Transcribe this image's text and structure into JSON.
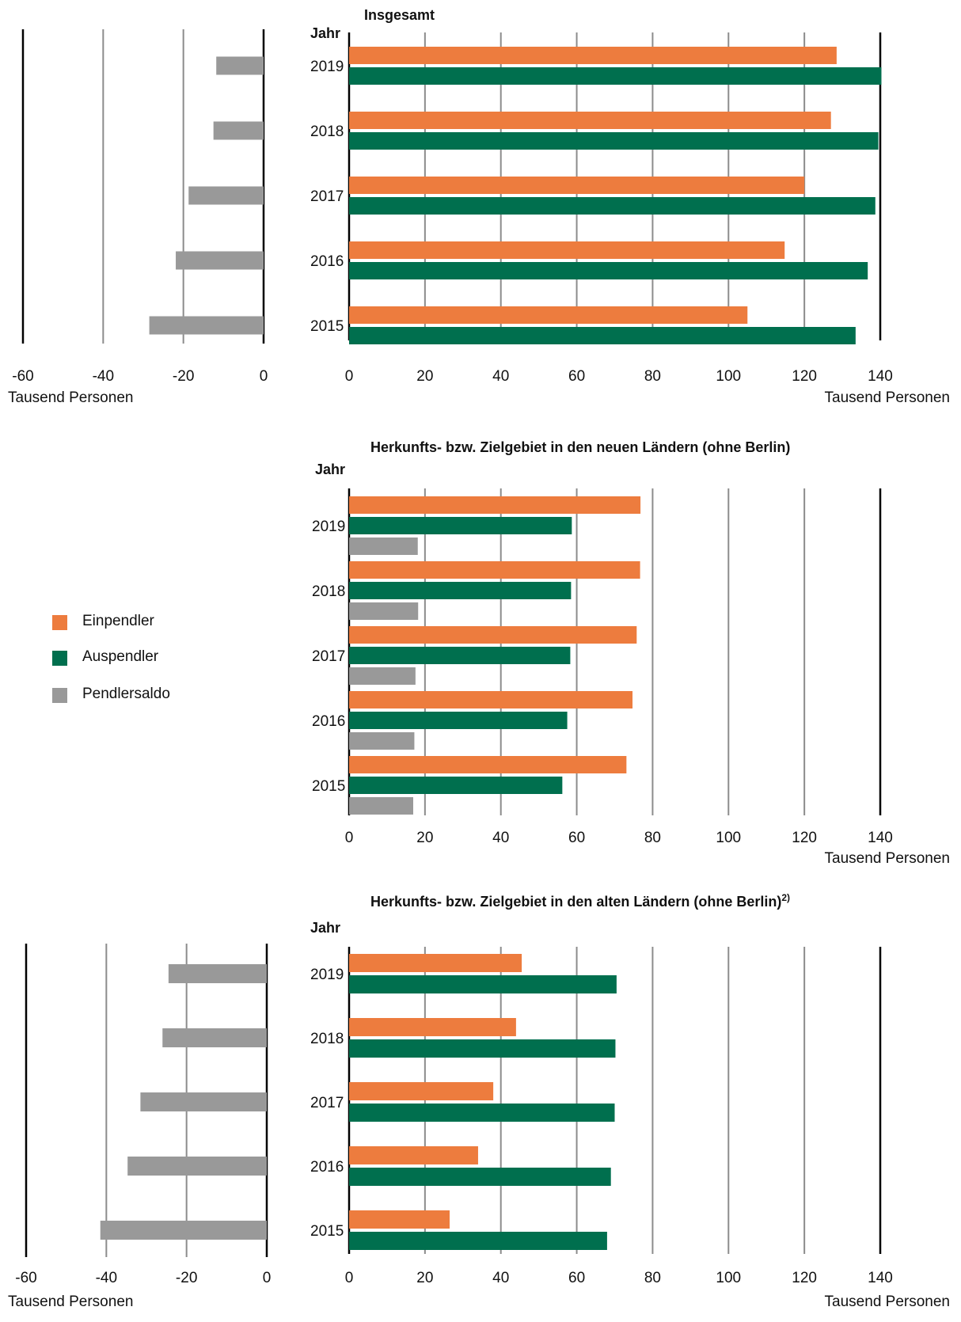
{
  "colors": {
    "einpendler": "#ED7C3E",
    "auspendler": "#006F4E",
    "pendlersaldo": "#999999",
    "axis": "#000000",
    "grid": "#8c8c8c"
  },
  "legend": {
    "items": [
      {
        "key": "einpendler",
        "label": "Einpendler"
      },
      {
        "key": "auspendler",
        "label": "Auspendler"
      },
      {
        "key": "pendlersaldo",
        "label": "Pendlersaldo"
      }
    ]
  },
  "chart_data": [
    {
      "type": "bar",
      "orientation": "horizontal",
      "title": "Insgesamt",
      "ylabel": "Jahr",
      "xlabel": "Tausend Personen",
      "categories": [
        "2019",
        "2018",
        "2017",
        "2016",
        "2015"
      ],
      "xlim": [
        0,
        140
      ],
      "xticks": [
        "0",
        "20",
        "40",
        "60",
        "80",
        "100",
        "120",
        "140"
      ],
      "series": [
        {
          "name": "Einpendler",
          "color": "#ED7C3E",
          "values": [
            128.5,
            127.0,
            120.0,
            114.8,
            105.0
          ]
        },
        {
          "name": "Auspendler",
          "color": "#006F4E",
          "values": [
            140.3,
            139.5,
            138.7,
            136.7,
            133.5
          ]
        }
      ],
      "side_chart": {
        "xlabel": "Tausend Personen",
        "xlim": [
          -60,
          0
        ],
        "xticks": [
          "-60",
          "-40",
          "-20",
          "0"
        ],
        "series": [
          {
            "name": "Pendlersaldo",
            "color": "#999999",
            "values": [
              -11.8,
              -12.5,
              -18.7,
              -21.9,
              -28.5
            ]
          }
        ]
      }
    },
    {
      "type": "bar",
      "orientation": "horizontal",
      "title": "Herkunfts- bzw. Zielgebiet in den neuen Ländern (ohne Berlin)",
      "ylabel": "Jahr",
      "xlabel": "Tausend Personen",
      "categories": [
        "2019",
        "2018",
        "2017",
        "2016",
        "2015"
      ],
      "xlim": [
        0,
        140
      ],
      "xticks": [
        "0",
        "20",
        "40",
        "60",
        "80",
        "100",
        "120",
        "140"
      ],
      "series": [
        {
          "name": "Einpendler",
          "color": "#ED7C3E",
          "values": [
            76.8,
            76.7,
            75.8,
            74.7,
            73.1
          ]
        },
        {
          "name": "Auspendler",
          "color": "#006F4E",
          "values": [
            58.7,
            58.5,
            58.3,
            57.5,
            56.2
          ]
        },
        {
          "name": "Pendlersaldo",
          "color": "#999999",
          "values": [
            18.1,
            18.2,
            17.5,
            17.2,
            16.9
          ]
        }
      ]
    },
    {
      "type": "bar",
      "orientation": "horizontal",
      "title": "Herkunfts- bzw. Zielgebiet in den alten Ländern (ohne Berlin)",
      "title_sup": "2)",
      "ylabel": "Jahr",
      "xlabel": "Tausend Personen",
      "categories": [
        "2019",
        "2018",
        "2017",
        "2016",
        "2015"
      ],
      "xlim": [
        0,
        140
      ],
      "xticks": [
        "0",
        "20",
        "40",
        "60",
        "80",
        "100",
        "120",
        "140"
      ],
      "series": [
        {
          "name": "Einpendler",
          "color": "#ED7C3E",
          "values": [
            45.5,
            44.0,
            38.0,
            34.0,
            26.5
          ]
        },
        {
          "name": "Auspendler",
          "color": "#006F4E",
          "values": [
            70.5,
            70.2,
            70.0,
            69.0,
            68.0
          ]
        }
      ],
      "side_chart": {
        "xlabel": "Tausend Personen",
        "xlim": [
          -60,
          0
        ],
        "xticks": [
          "-60",
          "-40",
          "-20",
          "0"
        ],
        "series": [
          {
            "name": "Pendlersaldo",
            "color": "#999999",
            "values": [
              -24.5,
              -26.0,
              -31.5,
              -34.7,
              -41.5
            ]
          }
        ]
      }
    }
  ]
}
